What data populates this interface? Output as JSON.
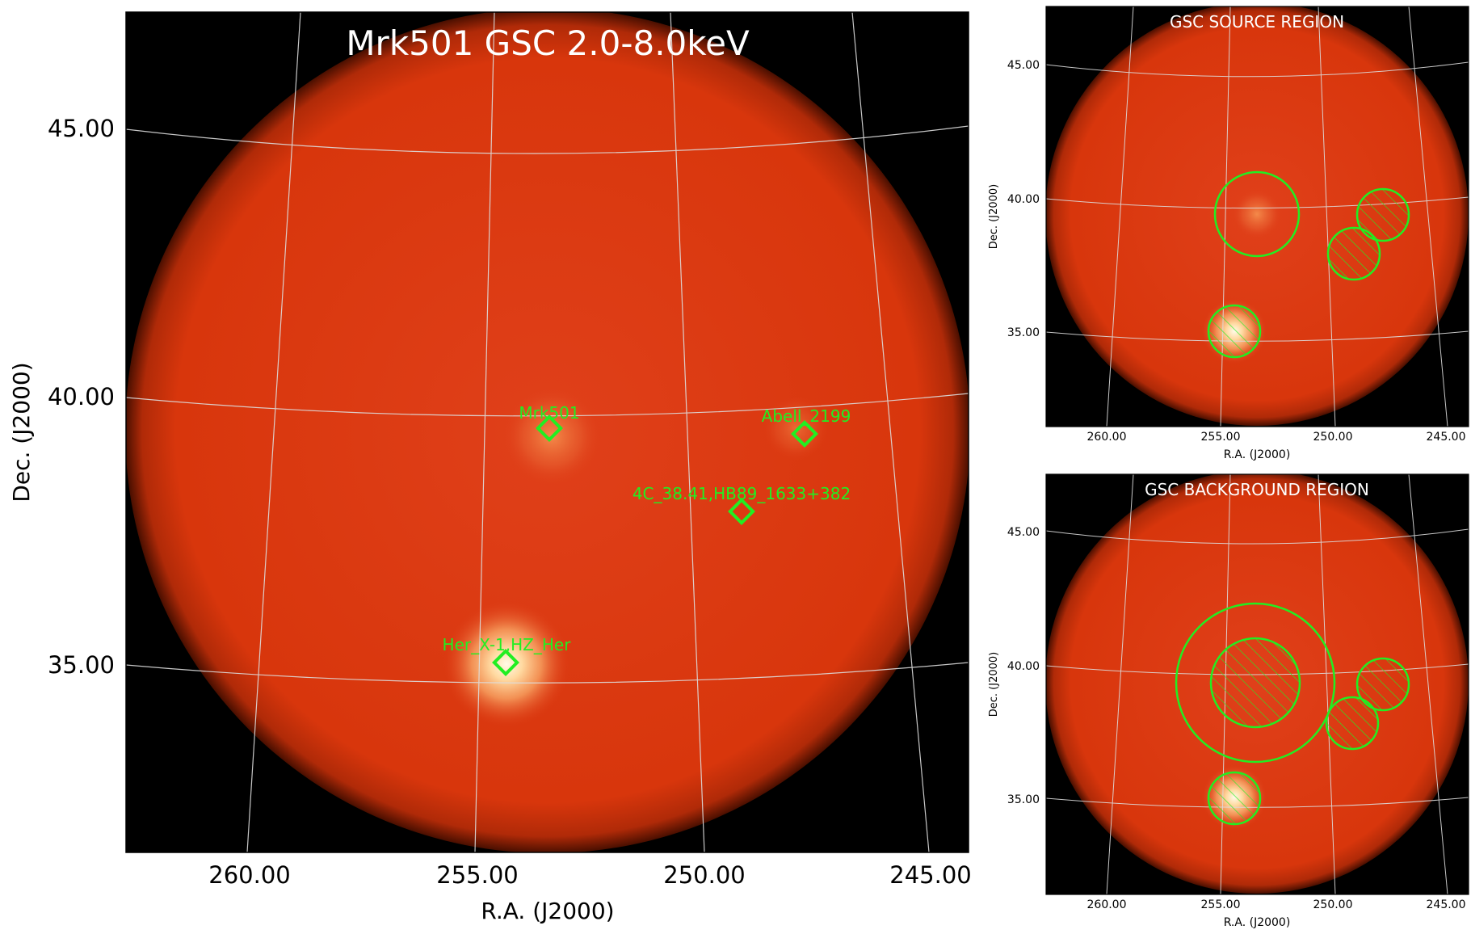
{
  "main_panel": {
    "title": "Mrk501 GSC 2.0-8.0keV",
    "xlabel": "R.A. (J2000)",
    "ylabel": "Dec. (J2000)",
    "x_ticks": [
      "260.00",
      "255.00",
      "250.00",
      "245.00"
    ],
    "y_ticks": [
      "45.00",
      "40.00",
      "35.00"
    ],
    "sources": [
      {
        "label": "Mrk501"
      },
      {
        "label": "Abell_2199"
      },
      {
        "label": "4C_38.41,HB89_1633+382"
      },
      {
        "label": "Her_X-1,HZ_Her"
      }
    ]
  },
  "source_panel": {
    "title": "GSC SOURCE REGION",
    "xlabel": "R.A. (J2000)",
    "ylabel": "Dec. (J2000)",
    "x_ticks": [
      "260.00",
      "255.00",
      "250.00",
      "245.00"
    ],
    "y_ticks": [
      "45.00",
      "40.00",
      "35.00"
    ]
  },
  "background_panel": {
    "title": "GSC BACKGROUND REGION",
    "xlabel": "R.A. (J2000)",
    "ylabel": "Dec. (J2000)",
    "x_ticks": [
      "260.00",
      "255.00",
      "250.00",
      "245.00"
    ],
    "y_ticks": [
      "45.00",
      "40.00",
      "35.00"
    ]
  },
  "colors": {
    "background": "#000000",
    "field": "#d9380f",
    "marker": "#22ee22",
    "grid": "#dddddd"
  }
}
